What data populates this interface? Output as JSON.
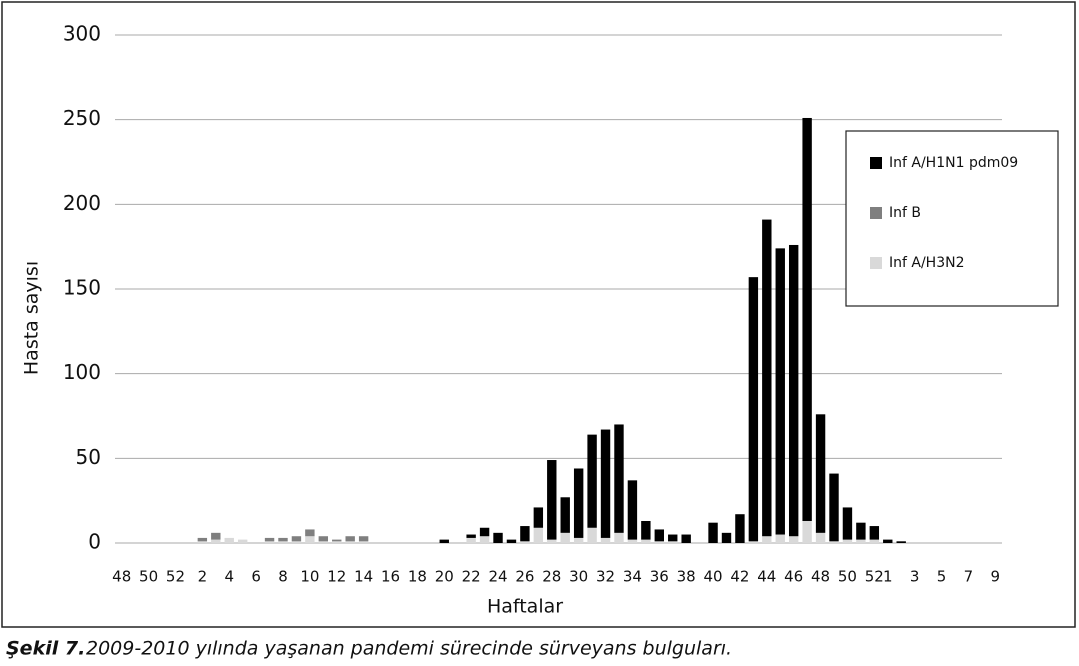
{
  "chart_data": {
    "type": "stacked_bar",
    "y_label": "Hasta sayısı",
    "x_label": "Haftalar",
    "caption_label": "Şekil 7.",
    "caption": "2009-2010 yılında yaşanan pandemi sürecinde sürveyans bulguları.",
    "categories": [
      "48",
      null,
      "50",
      null,
      "52",
      null,
      "2",
      null,
      "4",
      null,
      "6",
      null,
      "8",
      null,
      "10",
      null,
      "12",
      null,
      "14",
      null,
      "16",
      null,
      "18",
      null,
      "20",
      null,
      "22",
      null,
      "24",
      null,
      "26",
      null,
      "28",
      null,
      "30",
      null,
      "32",
      null,
      "34",
      null,
      "36",
      null,
      "38",
      null,
      "40",
      null,
      "42",
      null,
      "44",
      null,
      "46",
      null,
      "48",
      null,
      "50",
      null,
      "52",
      "1",
      null,
      "3",
      null,
      "5",
      null,
      "7",
      null,
      "9"
    ],
    "series": [
      {
        "name": "Inf A/H1N1 pdm09",
        "color": "#000000",
        "values": [
          0,
          0,
          0,
          0,
          0,
          0,
          0,
          0,
          0,
          0,
          0,
          0,
          0,
          0,
          0,
          0,
          0,
          0,
          0,
          0,
          0,
          0,
          0,
          0,
          2,
          0,
          2,
          5,
          6,
          2,
          9,
          12,
          47,
          21,
          41,
          55,
          64,
          64,
          35,
          11,
          7,
          4,
          5,
          0,
          12,
          6,
          17,
          156,
          187,
          169,
          172,
          238,
          70,
          40,
          19,
          10,
          8,
          2,
          1,
          0,
          0,
          0,
          0,
          0,
          0,
          0
        ]
      },
      {
        "name": "Inf B",
        "color": "#7f7f7f",
        "values": [
          0,
          0,
          0,
          0,
          0,
          0,
          2,
          4,
          0,
          0,
          0,
          2,
          2,
          3,
          4,
          3,
          1,
          3,
          3,
          0,
          0,
          0,
          0,
          0,
          0,
          0,
          0,
          0,
          0,
          0,
          0,
          0,
          0,
          0,
          0,
          0,
          0,
          0,
          0,
          0,
          0,
          0,
          0,
          0,
          0,
          0,
          0,
          0,
          0,
          0,
          0,
          0,
          0,
          0,
          0,
          0,
          0,
          0,
          0,
          0,
          0,
          0,
          0,
          0,
          0,
          0
        ]
      },
      {
        "name": "Inf A/H3N2",
        "color": "#d9d9d9",
        "values": [
          0,
          0,
          0,
          0,
          0,
          0,
          1,
          2,
          3,
          2,
          0,
          1,
          1,
          1,
          4,
          1,
          1,
          1,
          1,
          0,
          0,
          0,
          0,
          0,
          0,
          0,
          3,
          4,
          0,
          0,
          1,
          9,
          2,
          6,
          3,
          9,
          3,
          6,
          2,
          2,
          1,
          1,
          0,
          0,
          0,
          0,
          0,
          1,
          4,
          5,
          4,
          13,
          6,
          1,
          2,
          2,
          2,
          0,
          0,
          0,
          0,
          0,
          0,
          0,
          0,
          0
        ]
      }
    ],
    "stack_order": [
      2,
      1,
      0
    ],
    "ylim": [
      0,
      300
    ],
    "yticks": [
      0,
      50,
      100,
      150,
      200,
      250,
      300
    ],
    "grid": true,
    "legend": "upper-right"
  }
}
